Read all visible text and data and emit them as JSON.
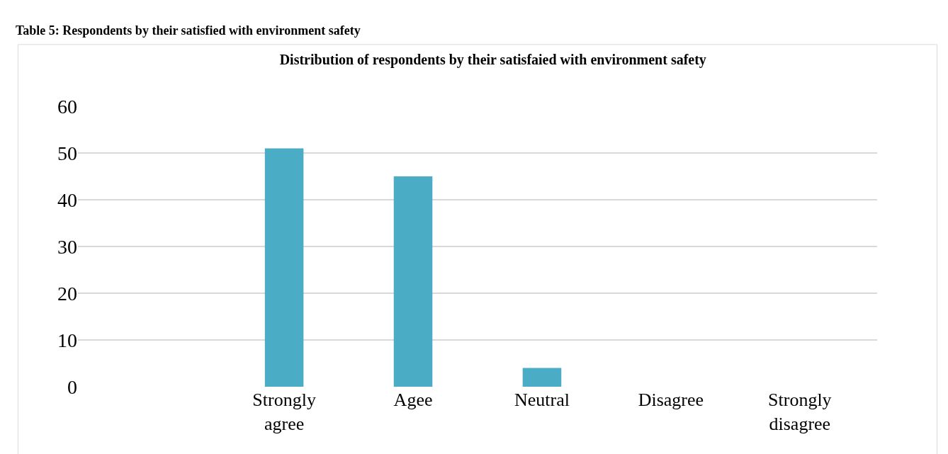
{
  "chart_data": {
    "type": "bar",
    "title": "Distribution of respondents by their satisfaied with environment safety",
    "categories": [
      null,
      "Strongly agree",
      "Agee",
      "Neutral",
      "Disagree",
      "Strongly disagree"
    ],
    "values": [
      null,
      51,
      45,
      4,
      0,
      0
    ],
    "color": "#4bacc6",
    "ylim": [
      0,
      60
    ],
    "yticks": [
      0,
      10,
      20,
      30,
      40,
      50,
      60
    ],
    "grid": "y",
    "annotations": [
      "Table 5: Respondents by their satisfied with environment safety"
    ]
  }
}
